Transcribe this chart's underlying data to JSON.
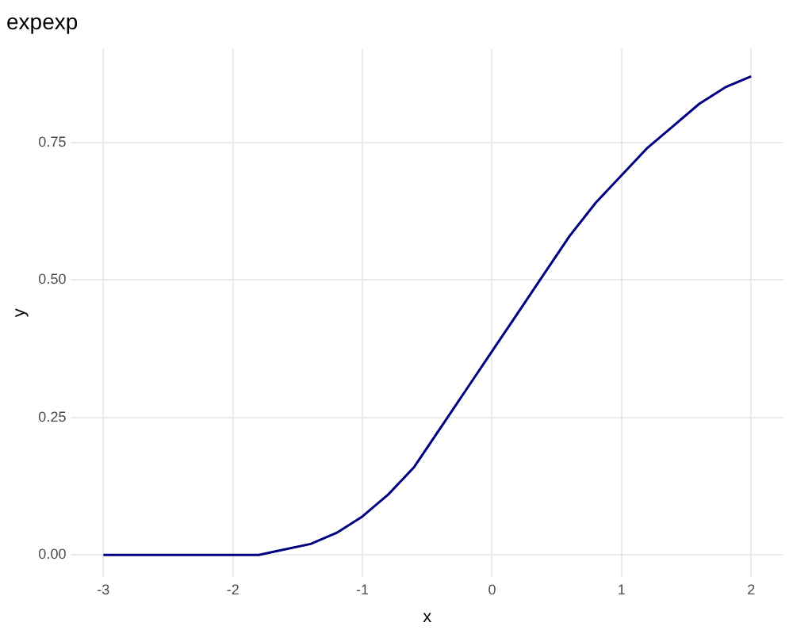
{
  "chart_data": {
    "type": "line",
    "title": "expexp",
    "xlabel": "x",
    "ylabel": "y",
    "x": [
      -3,
      -2.8,
      -2.6,
      -2.4,
      -2.2,
      -2,
      -1.8,
      -1.6,
      -1.4,
      -1.2,
      -1,
      -0.8,
      -0.6,
      -0.4,
      -0.2,
      0,
      0.2,
      0.4,
      0.6,
      0.8,
      1,
      1.2,
      1.4,
      1.6,
      1.8,
      2
    ],
    "series": [
      {
        "color": "#000080",
        "values": [
          0,
          0,
          0,
          0,
          0,
          0,
          0,
          0.01,
          0.02,
          0.04,
          0.07,
          0.11,
          0.16,
          0.23,
          0.3,
          0.37,
          0.44,
          0.51,
          0.58,
          0.64,
          0.69,
          0.74,
          0.78,
          0.82,
          0.85,
          0.87
        ]
      }
    ],
    "xlim": [
      -3.25,
      2.25
    ],
    "ylim": [
      -0.04,
      0.92
    ],
    "xticks": [
      -3,
      -2,
      -1,
      0,
      1,
      2
    ],
    "yticks": [
      {
        "value": 0,
        "label": "0.00"
      },
      {
        "value": 0.25,
        "label": "0.25"
      },
      {
        "value": 0.5,
        "label": "0.50"
      },
      {
        "value": 0.75,
        "label": "0.75"
      }
    ],
    "grid": true,
    "legend": false,
    "marker": "none",
    "line_style": "solid"
  }
}
